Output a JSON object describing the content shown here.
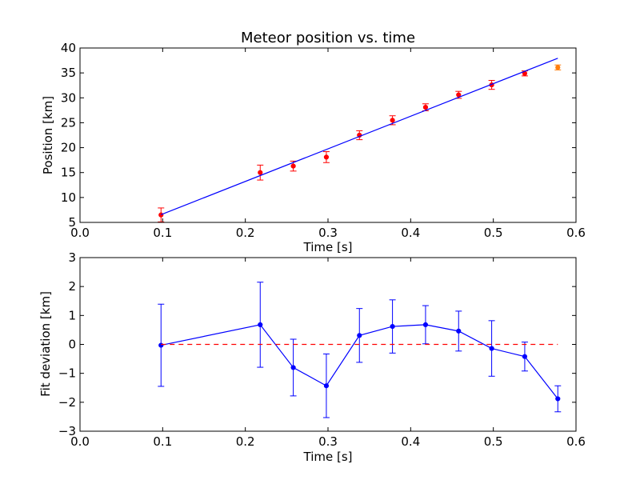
{
  "chart_data": [
    {
      "type": "scatter",
      "title": "Meteor position vs. time",
      "xlabel": "Time [s]",
      "ylabel": "Position [km]",
      "xlim": [
        0.0,
        0.6
      ],
      "ylim": [
        5,
        40
      ],
      "xticks": [
        "0.0",
        "0.1",
        "0.2",
        "0.3",
        "0.4",
        "0.5",
        "0.6"
      ],
      "yticks": [
        "5",
        "10",
        "15",
        "20",
        "25",
        "30",
        "35",
        "40"
      ],
      "grid": false,
      "series": [
        {
          "kind": "points-with-errorbars",
          "color": "#ff0000",
          "x": [
            0.098,
            0.218,
            0.258,
            0.298,
            0.338,
            0.378,
            0.418,
            0.458,
            0.498,
            0.538
          ],
          "y": [
            6.5,
            15.0,
            16.3,
            18.1,
            22.5,
            25.5,
            28.1,
            30.6,
            32.6,
            34.9
          ],
          "yerr": [
            1.4,
            1.5,
            1.0,
            1.1,
            0.9,
            0.9,
            0.7,
            0.7,
            0.9,
            0.5
          ]
        },
        {
          "kind": "points-with-errorbars",
          "color": "#ff7f0e",
          "x": [
            0.578
          ],
          "y": [
            36.1
          ],
          "yerr": [
            0.5
          ]
        },
        {
          "kind": "fit-line",
          "color": "#0000ff",
          "x": [
            0.098,
            0.578
          ],
          "y": [
            6.55,
            37.95
          ]
        }
      ]
    },
    {
      "type": "line",
      "title": "",
      "xlabel": "Time [s]",
      "ylabel": "Fit deviation [km]",
      "xlim": [
        0.0,
        0.6
      ],
      "ylim": [
        -3,
        3
      ],
      "xticks": [
        "0.0",
        "0.1",
        "0.2",
        "0.3",
        "0.4",
        "0.5",
        "0.6"
      ],
      "yticks": [
        "−3",
        "−2",
        "−1",
        "0",
        "1",
        "2",
        "3"
      ],
      "grid": false,
      "series": [
        {
          "kind": "line-with-errorbars",
          "color": "#0000ff",
          "x": [
            0.098,
            0.218,
            0.258,
            0.298,
            0.338,
            0.378,
            0.418,
            0.458,
            0.498,
            0.538,
            0.578
          ],
          "y": [
            -0.03,
            0.68,
            -0.8,
            -1.43,
            0.31,
            0.62,
            0.68,
            0.46,
            -0.14,
            -0.42,
            -1.88
          ],
          "yerr": [
            1.42,
            1.47,
            0.98,
            1.1,
            0.93,
            0.92,
            0.66,
            0.69,
            0.96,
            0.5,
            0.45
          ]
        },
        {
          "kind": "reference-line",
          "color": "#ff0000",
          "dashed": true,
          "x": [
            0.098,
            0.578
          ],
          "y": [
            0,
            0
          ]
        }
      ]
    }
  ]
}
